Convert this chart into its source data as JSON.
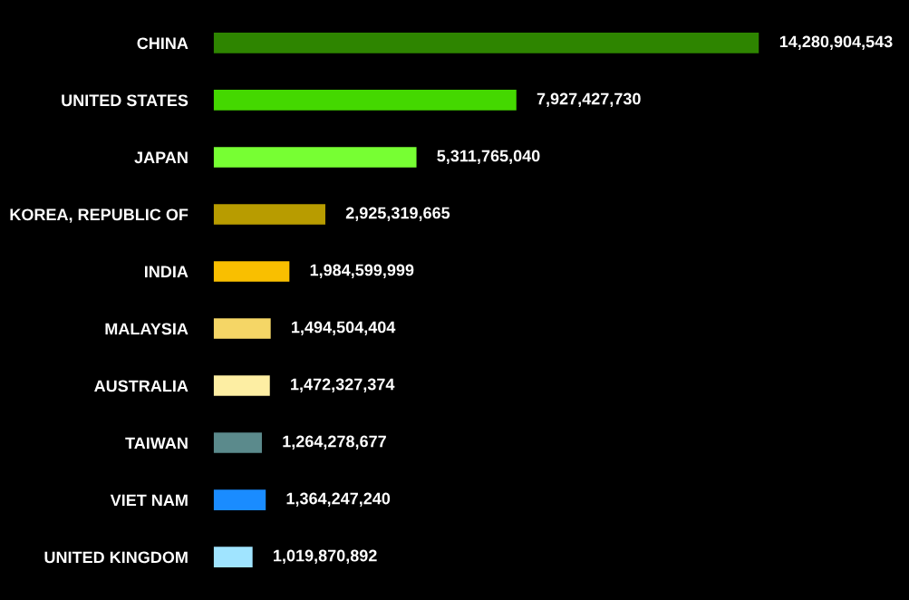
{
  "chart_data": {
    "type": "bar",
    "orientation": "horizontal",
    "value_labels": [
      "14,280,904,543",
      "7,927,427,730",
      "5,311,765,040",
      "2,925,319,665",
      "1,984,599,999",
      "1,494,504,404",
      "1,472,327,374",
      "1,264,278,677",
      "1,364,247,240",
      "1,019,870,892"
    ],
    "categories": [
      "CHINA",
      "UNITED STATES",
      "JAPAN",
      "KOREA, REPUBLIC OF",
      "INDIA",
      "MALAYSIA",
      "AUSTRALIA",
      "TAIWAN",
      "VIET NAM",
      "UNITED KINGDOM"
    ],
    "values": [
      14280904543,
      7927427730,
      5311765040,
      2925319665,
      1984599999,
      1494504404,
      1472327374,
      1264278677,
      1364247240,
      1019870892
    ],
    "colors": [
      "#2e8500",
      "#44d800",
      "#77ff33",
      "#b89c00",
      "#f9bf00",
      "#f5d666",
      "#fdeea3",
      "#5b8a8c",
      "#1a8cff",
      "#a0e4ff"
    ]
  }
}
